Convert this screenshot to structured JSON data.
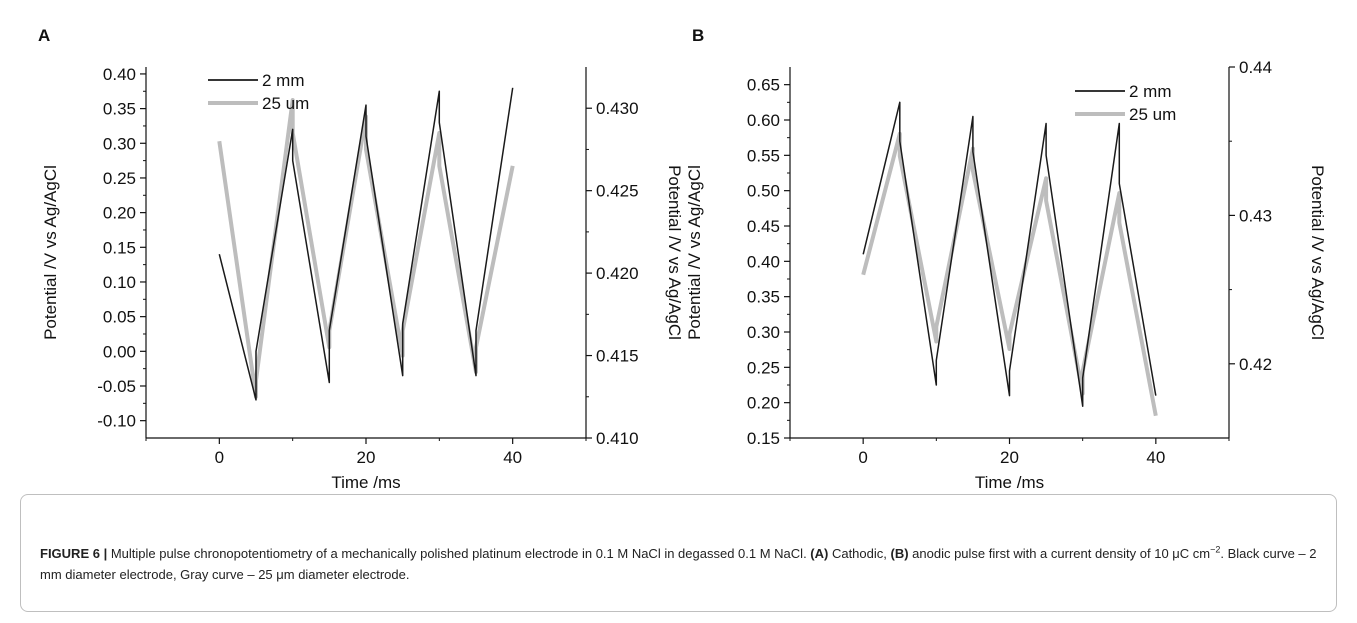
{
  "panels": {
    "a_letter": "A",
    "b_letter": "B"
  },
  "caption": {
    "figure_label": "FIGURE 6 |",
    "text1": " Multiple pulse chronopotentiometry of a mechanically polished platinum electrode in 0.1 M NaCl in degassed 0.1 M NaCl. ",
    "a_tag": "(A)",
    "text2": " Cathodic, ",
    "b_tag": "(B)",
    "text3": " anodic pulse first with a current density of 10 μC cm",
    "sup": "−2",
    "text4": ". Black curve – 2 mm diameter electrode, Gray curve – 25 μm diameter electrode."
  },
  "colors": {
    "black_series": "#1a1a1a",
    "gray_series": "#bdbdbd"
  },
  "chart_data": [
    {
      "panel": "A",
      "type": "line",
      "xlabel": "Time /ms",
      "ylabel_left": "Potential /V vs Ag/AgCl",
      "ylabel_right": "Potential /V vs Ag/AgCl",
      "xlim": [
        -10,
        50
      ],
      "ylim_left": [
        -0.125,
        0.41
      ],
      "ylim_right": [
        0.41,
        0.4325
      ],
      "x_ticks": [
        0,
        20,
        40
      ],
      "y_ticks_left": [
        "-0.10",
        "-0.05",
        "0.00",
        "0.05",
        "0.10",
        "0.15",
        "0.20",
        "0.25",
        "0.30",
        "0.35",
        "0.40"
      ],
      "y_ticks_right": [
        "0.410",
        "0.415",
        "0.420",
        "0.425",
        "0.430"
      ],
      "legend_position": "top-left",
      "series": [
        {
          "name": "2 mm",
          "axis": "left",
          "color": "#1a1a1a",
          "x": [
            0,
            5,
            5,
            10,
            10,
            15,
            15,
            20,
            20,
            25,
            25,
            30,
            30,
            35,
            35,
            40
          ],
          "y": [
            0.14,
            -0.07,
            0.0,
            0.32,
            0.275,
            -0.045,
            0.03,
            0.355,
            0.31,
            -0.035,
            0.04,
            0.375,
            0.33,
            -0.035,
            0.03,
            0.38
          ]
        },
        {
          "name": "25 um",
          "axis": "right",
          "color": "#bdbdbd",
          "x": [
            0,
            5,
            5,
            10,
            10,
            15,
            15,
            20,
            20,
            25,
            25,
            30,
            30,
            35,
            35,
            40
          ],
          "y": [
            0.428,
            0.4125,
            0.4135,
            0.4305,
            0.4285,
            0.4155,
            0.4165,
            0.4295,
            0.4275,
            0.415,
            0.4165,
            0.4285,
            0.4265,
            0.414,
            0.4155,
            0.4265
          ]
        }
      ]
    },
    {
      "panel": "B",
      "type": "line",
      "xlabel": "Time /ms",
      "ylabel_left": "Potential /V vs Ag/AgCl",
      "ylabel_right": "Potential /V vs Ag/AgCl",
      "xlim": [
        -10,
        50
      ],
      "ylim_left": [
        0.15,
        0.675
      ],
      "ylim_right": [
        0.415,
        0.44
      ],
      "x_ticks": [
        0,
        20,
        40
      ],
      "y_ticks_left": [
        "0.15",
        "0.20",
        "0.25",
        "0.30",
        "0.35",
        "0.40",
        "0.45",
        "0.50",
        "0.55",
        "0.60",
        "0.65"
      ],
      "y_ticks_right": [
        "0.42",
        "0.43",
        "0.44"
      ],
      "legend_position": "top-right",
      "series": [
        {
          "name": "2 mm",
          "axis": "left",
          "color": "#1a1a1a",
          "x": [
            0,
            5,
            5,
            10,
            10,
            15,
            15,
            20,
            20,
            25,
            25,
            30,
            30,
            35,
            35,
            40
          ],
          "y": [
            0.41,
            0.625,
            0.57,
            0.225,
            0.26,
            0.605,
            0.555,
            0.21,
            0.245,
            0.595,
            0.55,
            0.195,
            0.235,
            0.595,
            0.51,
            0.21
          ]
        },
        {
          "name": "25 um",
          "axis": "right",
          "color": "#bdbdbd",
          "x": [
            0,
            5,
            5,
            10,
            10,
            15,
            15,
            20,
            20,
            25,
            25,
            30,
            30,
            35,
            35,
            40
          ],
          "y": [
            0.426,
            0.4355,
            0.434,
            0.4215,
            0.4225,
            0.4345,
            0.433,
            0.421,
            0.422,
            0.4325,
            0.431,
            0.418,
            0.4195,
            0.4315,
            0.4295,
            0.4165
          ]
        }
      ]
    }
  ]
}
